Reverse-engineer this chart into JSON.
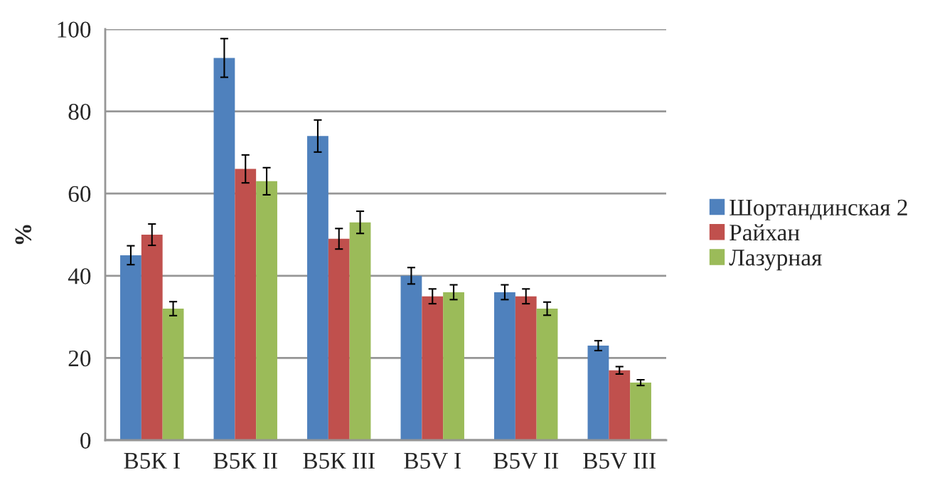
{
  "chart_data": {
    "type": "bar",
    "ylabel": "%",
    "categories": [
      "B5К I",
      "B5К II",
      "B5К III",
      "B5V I",
      "B5V II",
      "B5V III"
    ],
    "series": [
      {
        "name": "Шортандинская 2",
        "color": "#4f81bd",
        "values": [
          45,
          93,
          74,
          40,
          36,
          23
        ],
        "errors": [
          2.3,
          4.7,
          3.9,
          2.0,
          1.8,
          1.2
        ]
      },
      {
        "name": "Райхан",
        "color": "#c0504d",
        "values": [
          50,
          66,
          49,
          35,
          35,
          17
        ],
        "errors": [
          2.6,
          3.4,
          2.5,
          1.8,
          1.8,
          0.9
        ]
      },
      {
        "name": "Лазурная",
        "color": "#9bbb59",
        "values": [
          32,
          63,
          53,
          36,
          32,
          14
        ],
        "errors": [
          1.7,
          3.3,
          2.7,
          1.8,
          1.6,
          0.7
        ]
      }
    ],
    "ylim": [
      0,
      100
    ],
    "yticks": [
      0,
      20,
      40,
      60,
      80,
      100
    ],
    "grid": "y",
    "legend": "right"
  }
}
